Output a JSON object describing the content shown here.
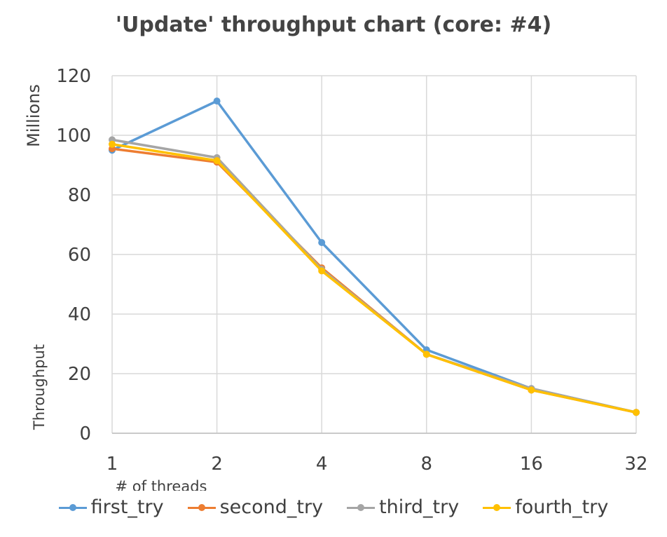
{
  "chart_data": {
    "type": "line",
    "title": "'Update' throughput chart (core: #4)",
    "xlabel": "# of threads",
    "ylabel": "Throughput",
    "y_unit_label": "Millions",
    "categories": [
      "1",
      "2",
      "4",
      "8",
      "16",
      "32"
    ],
    "ylim": [
      0,
      120
    ],
    "yticks": [
      0,
      20,
      40,
      60,
      80,
      100,
      120
    ],
    "grid": true,
    "legend_position": "bottom",
    "series": [
      {
        "name": "first_try",
        "color": "#5B9BD5",
        "values": [
          95,
          111.5,
          64,
          28,
          15,
          7
        ]
      },
      {
        "name": "second_try",
        "color": "#ED7D31",
        "values": [
          95.5,
          91,
          55.5,
          26.5,
          14.5,
          7
        ]
      },
      {
        "name": "third_try",
        "color": "#A5A5A5",
        "values": [
          98.5,
          92.5,
          55,
          26.5,
          15,
          7
        ]
      },
      {
        "name": "fourth_try",
        "color": "#FFC000",
        "values": [
          97,
          91.5,
          54.5,
          26.5,
          14.5,
          7
        ]
      }
    ]
  }
}
